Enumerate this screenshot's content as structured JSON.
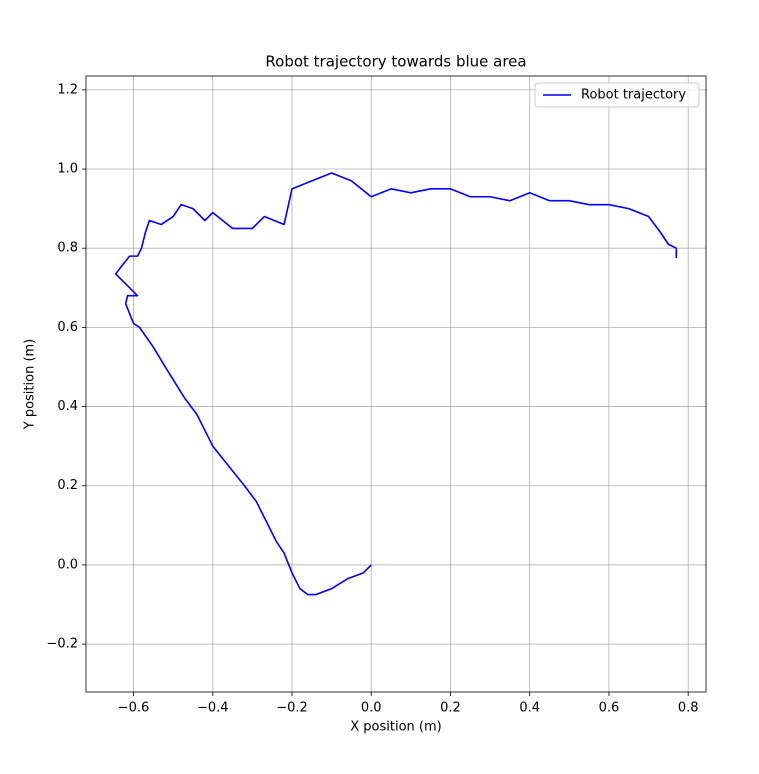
{
  "chart_data": {
    "type": "line",
    "title": "Robot trajectory towards blue area",
    "xlabel": "X position (m)",
    "ylabel": "Y position (m)",
    "series": [
      {
        "name": "Robot trajectory",
        "color": "#0000ff",
        "x": [
          0,
          -0.02,
          -0.06,
          -0.1,
          -0.14,
          -0.16,
          -0.18,
          -0.2,
          -0.22,
          -0.24,
          -0.27,
          -0.29,
          -0.32,
          -0.36,
          -0.4,
          -0.42,
          -0.44,
          -0.47,
          -0.52,
          -0.55,
          -0.585,
          -0.6,
          -0.62,
          -0.615,
          -0.59,
          -0.645,
          -0.63,
          -0.61,
          -0.59,
          -0.58,
          -0.57,
          -0.56,
          -0.53,
          -0.5,
          -0.48,
          -0.45,
          -0.42,
          -0.4,
          -0.35,
          -0.3,
          -0.27,
          -0.22,
          -0.2,
          -0.15,
          -0.1,
          -0.05,
          0,
          0.05,
          0.1,
          0.15,
          0.2,
          0.25,
          0.3,
          0.35,
          0.4,
          0.45,
          0.5,
          0.55,
          0.6,
          0.65,
          0.7,
          0.73,
          0.75,
          0.77,
          0.77
        ],
        "values": [
          0,
          -0.02,
          -0.035,
          -0.06,
          -0.075,
          -0.075,
          -0.06,
          -0.02,
          0.03,
          0.06,
          0.12,
          0.16,
          0.2,
          0.25,
          0.3,
          0.34,
          0.38,
          0.42,
          0.5,
          0.55,
          0.6,
          0.61,
          0.66,
          0.68,
          0.68,
          0.735,
          0.755,
          0.78,
          0.78,
          0.8,
          0.84,
          0.87,
          0.86,
          0.88,
          0.91,
          0.9,
          0.87,
          0.89,
          0.85,
          0.85,
          0.88,
          0.86,
          0.95,
          0.97,
          0.99,
          0.97,
          0.93,
          0.95,
          0.94,
          0.95,
          0.95,
          0.93,
          0.93,
          0.92,
          0.94,
          0.92,
          0.92,
          0.91,
          0.91,
          0.9,
          0.88,
          0.84,
          0.81,
          0.8,
          0.775
        ]
      }
    ],
    "xlim": [
      -0.72,
      0.845
    ],
    "ylim": [
      -0.321,
      1.235
    ],
    "xticks": [
      {
        "value": -0.6,
        "label": "−0.6"
      },
      {
        "value": -0.4,
        "label": "−0.4"
      },
      {
        "value": -0.2,
        "label": "−0.2"
      },
      {
        "value": 0,
        "label": "0.0"
      },
      0.2,
      0.4,
      0.6,
      0.8
    ],
    "yticks": [
      {
        "value": -0.2,
        "label": "−0.2"
      },
      {
        "value": 0,
        "label": "0.0"
      },
      0.2,
      0.4,
      0.6,
      0.8,
      {
        "value": 1,
        "label": "1.0"
      },
      1.2
    ],
    "grid": true,
    "legend": "upper right"
  }
}
